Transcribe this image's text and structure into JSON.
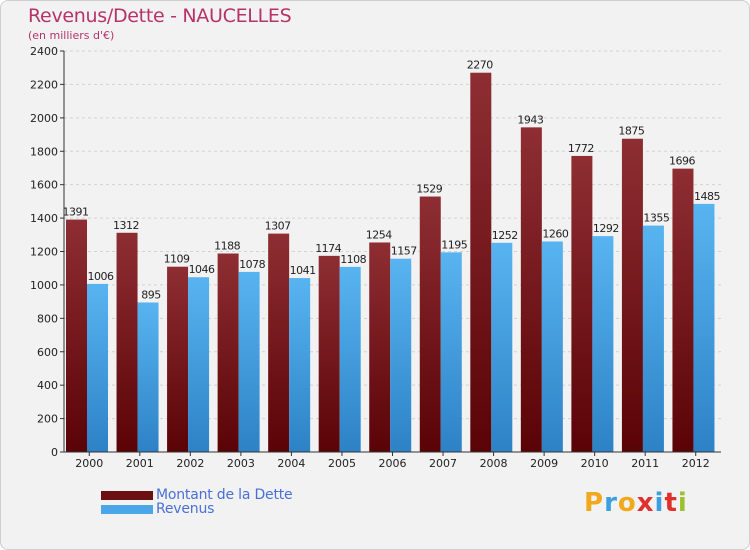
{
  "header": {
    "title": "Revenus/Dette - NAUCELLES",
    "subtitle": "(en milliers d'€)"
  },
  "legend": [
    {
      "label": "Montant de la Dette",
      "color": "#6b1013"
    },
    {
      "label": "Revenus",
      "color": "#4aa6e8"
    }
  ],
  "logo": {
    "text": "Proxiti"
  },
  "colors": {
    "dette_light": "#8e2e33",
    "dette_dark": "#5a0306",
    "revenus_light": "#58b4f0",
    "revenus_dark": "#2d82c6",
    "title": "#b8326a",
    "legend_text": "#4a6fd6"
  },
  "chart_data": {
    "type": "bar",
    "categories": [
      "2000",
      "2001",
      "2002",
      "2003",
      "2004",
      "2005",
      "2006",
      "2007",
      "2008",
      "2009",
      "2010",
      "2011",
      "2012"
    ],
    "series": [
      {
        "name": "Montant de la Dette",
        "values": [
          1391,
          1312,
          1109,
          1188,
          1307,
          1174,
          1254,
          1529,
          2270,
          1943,
          1772,
          1875,
          1696
        ]
      },
      {
        "name": "Revenus",
        "values": [
          1006,
          895,
          1046,
          1078,
          1041,
          1108,
          1157,
          1195,
          1252,
          1260,
          1292,
          1355,
          1485
        ]
      }
    ],
    "ylim": [
      0,
      2400
    ],
    "yticks": [
      0,
      200,
      400,
      600,
      800,
      1000,
      1200,
      1400,
      1600,
      1800,
      2000,
      2200,
      2400
    ],
    "grid": true,
    "legend_position": "bottom-left"
  }
}
